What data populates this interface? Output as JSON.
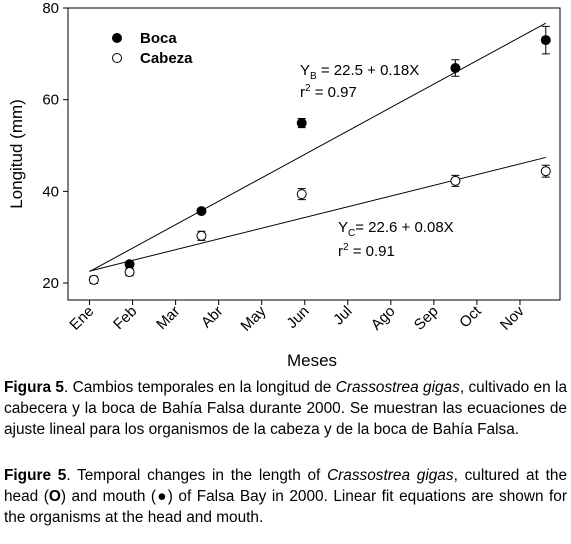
{
  "chart_data": {
    "type": "scatter",
    "x_label": "Meses",
    "y_label": "Longitud (mm)",
    "x": [
      0.1,
      0.93,
      2.6,
      4.93,
      8.5,
      10.6
    ],
    "series": [
      {
        "name": "Boca",
        "color": "#000000",
        "marker": "filled",
        "values": [
          null,
          24.1,
          35.7,
          54.9,
          66.9,
          73.0
        ],
        "errors": [
          null,
          0.6,
          0.5,
          1.0,
          1.8,
          3.0
        ]
      },
      {
        "name": "Cabeza",
        "color": "#000000",
        "marker": "open",
        "values": [
          20.7,
          22.4,
          30.3,
          39.4,
          42.3,
          44.4
        ],
        "errors": [
          0.8,
          0.8,
          1.0,
          1.2,
          1.2,
          1.3
        ]
      }
    ],
    "fits": [
      {
        "x": [
          0,
          10.6
        ],
        "values": [
          22.5,
          76.7
        ]
      },
      {
        "x": [
          0,
          10.6
        ],
        "values": [
          22.6,
          47.4
        ]
      }
    ],
    "annotations": [
      {
        "y": "Y",
        "sub": "B",
        "rest": " = 22.5 + 0.18X",
        "r": "r",
        "sup": "2",
        "r_rest": " = 0.97"
      },
      {
        "y": "Y",
        "sub": "C",
        "rest": "= 22.6 + 0.08X",
        "r": "r",
        "sup": "2",
        "r_rest": " = 0.91"
      }
    ],
    "xlim": [
      -0.5,
      10.93
    ],
    "xticks": [
      {
        "value": 0,
        "label": "Ene"
      },
      {
        "value": 1,
        "label": "Feb"
      },
      {
        "value": 2,
        "label": "Mar"
      },
      {
        "value": 3,
        "label": "Abr"
      },
      {
        "value": 4,
        "label": "May"
      },
      {
        "value": 5,
        "label": "Jun"
      },
      {
        "value": 6,
        "label": "Jul"
      },
      {
        "value": 7,
        "label": "Ago"
      },
      {
        "value": 8,
        "label": "Sep"
      },
      {
        "value": 9,
        "label": "Oct"
      },
      {
        "value": 10,
        "label": "Nov"
      }
    ],
    "ylim": [
      16.3,
      80
    ],
    "yticks": [
      20,
      40,
      60,
      80
    ],
    "grid": false,
    "legend": "upper left"
  },
  "caption": {
    "es": {
      "label": "Figura 5",
      "text_1": ". Cambios temporales en la longitud de ",
      "species": "Crassostrea gigas",
      "text_2": ", cultivado en la cabecera y la boca de Bahía Falsa durante 2000. Se muestran las ecuaciones de ajuste lineal para los organismos de la cabeza y de la boca de Bahía Falsa."
    },
    "en": {
      "label": "Figure 5",
      "text_1": ". Temporal changes in the length of ",
      "species": "Crassostrea gigas",
      "text_2": ", cultured at the head (",
      "open_symbol": "O",
      "text_3": ") and mouth (",
      "filled_symbol": "●",
      "text_4": ") of Falsa Bay in 2000. Linear fit equations are shown for the organisms at the head and mouth."
    }
  }
}
